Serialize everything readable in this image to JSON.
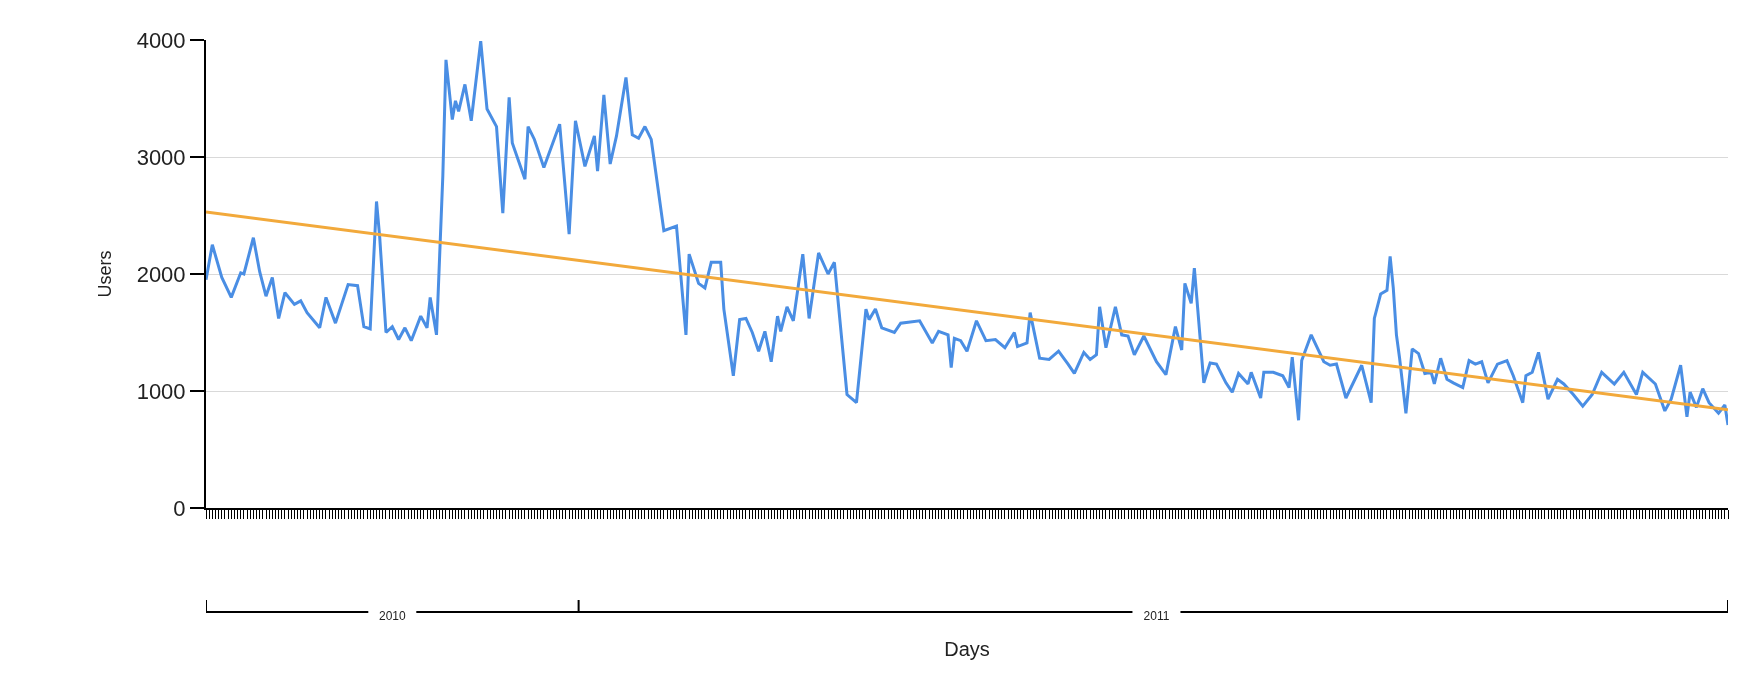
{
  "chart_data": {
    "type": "line",
    "xlabel": "Days",
    "ylabel": "Users",
    "xlim": [
      "2010-09-05",
      "2011-12-31"
    ],
    "xticks": [
      {
        "value": "2010-11-03",
        "label": "2010"
      },
      {
        "value": "2011-01-01",
        "label": null
      },
      {
        "value": "2011-07-03",
        "label": "2011"
      }
    ],
    "ylim": [
      0,
      4000
    ],
    "yticks": [
      0,
      1000,
      2000,
      3000,
      4000
    ],
    "grid": "y",
    "legend": false,
    "marker": "none",
    "line_style": "solid",
    "series": [
      {
        "color": "#4a8ee4",
        "x": [
          "2010-09-05",
          "2010-09-07",
          "2010-09-10",
          "2010-09-13",
          "2010-09-16",
          "2010-09-17",
          "2010-09-20",
          "2010-09-22",
          "2010-09-24",
          "2010-09-26",
          "2010-09-28",
          "2010-09-30",
          "2010-10-03",
          "2010-10-05",
          "2010-10-07",
          "2010-10-11",
          "2010-10-13",
          "2010-10-16",
          "2010-10-20",
          "2010-10-23",
          "2010-10-25",
          "2010-10-27",
          "2010-10-29",
          "2010-10-30",
          "2010-11-01",
          "2010-11-03",
          "2010-11-05",
          "2010-11-07",
          "2010-11-09",
          "2010-11-12",
          "2010-11-14",
          "2010-11-15",
          "2010-11-17",
          "2010-11-19",
          "2010-11-20",
          "2010-11-22",
          "2010-11-23",
          "2010-11-24",
          "2010-11-26",
          "2010-11-28",
          "2010-12-01",
          "2010-12-03",
          "2010-12-06",
          "2010-12-08",
          "2010-12-10",
          "2010-12-11",
          "2010-12-15",
          "2010-12-16",
          "2010-12-18",
          "2010-12-21",
          "2010-12-26",
          "2010-12-29",
          "2010-12-31",
          "2011-01-03",
          "2011-01-06",
          "2011-01-07",
          "2011-01-09",
          "2011-01-11",
          "2011-01-13",
          "2011-01-16",
          "2011-01-18",
          "2011-01-20",
          "2011-01-22",
          "2011-01-24",
          "2011-01-28",
          "2011-02-01",
          "2011-02-04",
          "2011-02-05",
          "2011-02-08",
          "2011-02-10",
          "2011-02-12",
          "2011-02-15",
          "2011-02-16",
          "2011-02-19",
          "2011-02-21",
          "2011-02-23",
          "2011-02-25",
          "2011-02-27",
          "2011-03-01",
          "2011-03-03",
          "2011-03-05",
          "2011-03-06",
          "2011-03-08",
          "2011-03-10",
          "2011-03-13",
          "2011-03-15",
          "2011-03-18",
          "2011-03-21",
          "2011-03-23",
          "2011-03-27",
          "2011-03-30",
          "2011-04-02",
          "2011-04-03",
          "2011-04-05",
          "2011-04-07",
          "2011-04-11",
          "2011-04-13",
          "2011-04-19",
          "2011-04-23",
          "2011-04-25",
          "2011-04-28",
          "2011-04-29",
          "2011-04-30",
          "2011-05-02",
          "2011-05-04",
          "2011-05-07",
          "2011-05-10",
          "2011-05-13",
          "2011-05-16",
          "2011-05-19",
          "2011-05-20",
          "2011-05-23",
          "2011-05-24",
          "2011-05-27",
          "2011-05-30",
          "2011-06-02",
          "2011-06-05",
          "2011-06-07",
          "2011-06-10",
          "2011-06-12",
          "2011-06-14",
          "2011-06-15",
          "2011-06-17",
          "2011-06-20",
          "2011-06-22",
          "2011-06-24",
          "2011-06-26",
          "2011-06-29",
          "2011-07-03",
          "2011-07-06",
          "2011-07-09",
          "2011-07-11",
          "2011-07-12",
          "2011-07-14",
          "2011-07-15",
          "2011-07-18",
          "2011-07-20",
          "2011-07-22",
          "2011-07-25",
          "2011-07-27",
          "2011-07-29",
          "2011-08-01",
          "2011-08-02",
          "2011-08-05",
          "2011-08-06",
          "2011-08-09",
          "2011-08-12",
          "2011-08-14",
          "2011-08-15",
          "2011-08-17",
          "2011-08-18",
          "2011-08-21",
          "2011-08-25",
          "2011-08-27",
          "2011-08-29",
          "2011-09-01",
          "2011-09-06",
          "2011-09-09",
          "2011-09-10",
          "2011-09-12",
          "2011-09-14",
          "2011-09-15",
          "2011-09-16",
          "2011-09-17",
          "2011-09-18",
          "2011-09-20",
          "2011-09-22",
          "2011-09-24",
          "2011-09-26",
          "2011-09-28",
          "2011-09-29",
          "2011-10-01",
          "2011-10-03",
          "2011-10-05",
          "2011-10-08",
          "2011-10-10",
          "2011-10-12",
          "2011-10-14",
          "2011-10-16",
          "2011-10-19",
          "2011-10-22",
          "2011-10-24",
          "2011-10-27",
          "2011-10-28",
          "2011-10-30",
          "2011-11-01",
          "2011-11-04",
          "2011-11-07",
          "2011-11-09",
          "2011-11-12",
          "2011-11-15",
          "2011-11-18",
          "2011-11-21",
          "2011-11-25",
          "2011-11-28",
          "2011-12-02",
          "2011-12-04",
          "2011-12-08",
          "2011-12-11",
          "2011-12-13",
          "2011-12-16",
          "2011-12-18",
          "2011-12-19",
          "2011-12-21",
          "2011-12-23",
          "2011-12-25",
          "2011-12-28",
          "2011-12-30",
          "2011-12-31"
        ],
        "values": [
          1950,
          2250,
          1970,
          1800,
          2010,
          2000,
          2310,
          2020,
          1810,
          1970,
          1620,
          1840,
          1740,
          1770,
          1670,
          1540,
          1800,
          1580,
          1910,
          1900,
          1550,
          1530,
          2620,
          2320,
          1500,
          1550,
          1440,
          1540,
          1430,
          1640,
          1540,
          1800,
          1480,
          2840,
          3830,
          3320,
          3480,
          3390,
          3620,
          3310,
          3990,
          3410,
          3260,
          2520,
          3510,
          3120,
          2810,
          3260,
          3150,
          2910,
          3280,
          2340,
          3310,
          2920,
          3180,
          2880,
          3530,
          2940,
          3180,
          3680,
          3190,
          3160,
          3260,
          3150,
          2370,
          2410,
          1480,
          2170,
          1920,
          1880,
          2100,
          2100,
          1700,
          1130,
          1610,
          1620,
          1500,
          1340,
          1510,
          1250,
          1640,
          1510,
          1720,
          1600,
          2170,
          1620,
          2180,
          2000,
          2100,
          970,
          900,
          1700,
          1610,
          1700,
          1540,
          1500,
          1580,
          1600,
          1410,
          1510,
          1480,
          1200,
          1450,
          1430,
          1340,
          1600,
          1430,
          1440,
          1370,
          1500,
          1380,
          1410,
          1670,
          1280,
          1270,
          1340,
          1230,
          1150,
          1330,
          1270,
          1310,
          1720,
          1370,
          1720,
          1480,
          1470,
          1310,
          1470,
          1250,
          1140,
          1550,
          1350,
          1920,
          1750,
          2050,
          1070,
          1240,
          1230,
          1070,
          990,
          1150,
          1060,
          1160,
          940,
          1160,
          1160,
          1130,
          1030,
          1290,
          750,
          1260,
          1480,
          1250,
          1220,
          1230,
          940,
          1220,
          900,
          1620,
          1830,
          1860,
          2150,
          1880,
          1480,
          1280,
          810,
          1360,
          1320,
          1150,
          1160,
          1060,
          1280,
          1100,
          1070,
          1030,
          1260,
          1230,
          1250,
          1070,
          1230,
          1260,
          1130,
          900,
          1130,
          1160,
          1330,
          930,
          1100,
          1060,
          970,
          870,
          970,
          1160,
          1060,
          1160,
          970,
          1160,
          1060,
          830,
          930,
          1220,
          780,
          990,
          860,
          1020,
          900,
          810,
          880,
          710
        ]
      },
      {
        "type": "line",
        "color": "#f2a93b",
        "x": [
          "2010-09-05",
          "2011-12-31"
        ],
        "values": [
          2530,
          840
        ]
      }
    ]
  }
}
